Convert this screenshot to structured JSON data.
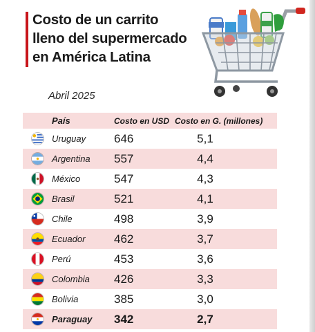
{
  "header": {
    "title_lines": [
      "Costo de un carrito",
      "lleno del supermercado",
      "en América Latina"
    ],
    "date": "Abril 2025"
  },
  "table": {
    "columns": [
      "País",
      "Costo en USD",
      "Costo en G. (millones)"
    ],
    "rows": [
      {
        "country": "Uruguay",
        "usd": "646",
        "g": "5,1",
        "flag_icon": "uruguay-flag-icon",
        "highlight": false
      },
      {
        "country": "Argentina",
        "usd": "557",
        "g": "4,4",
        "flag_icon": "argentina-flag-icon",
        "highlight": false
      },
      {
        "country": "México",
        "usd": "547",
        "g": "4,3",
        "flag_icon": "mexico-flag-icon",
        "highlight": false
      },
      {
        "country": "Brasil",
        "usd": "521",
        "g": "4,1",
        "flag_icon": "brazil-flag-icon",
        "highlight": false
      },
      {
        "country": "Chile",
        "usd": "498",
        "g": "3,9",
        "flag_icon": "chile-flag-icon",
        "highlight": false
      },
      {
        "country": "Ecuador",
        "usd": "462",
        "g": "3,7",
        "flag_icon": "ecuador-flag-icon",
        "highlight": false
      },
      {
        "country": "Perú",
        "usd": "453",
        "g": "3,6",
        "flag_icon": "peru-flag-icon",
        "highlight": false
      },
      {
        "country": "Colombia",
        "usd": "426",
        "g": "3,3",
        "flag_icon": "colombia-flag-icon",
        "highlight": false
      },
      {
        "country": "Bolivia",
        "usd": "385",
        "g": "3,0",
        "flag_icon": "bolivia-flag-icon",
        "highlight": false
      },
      {
        "country": "Paraguay",
        "usd": "342",
        "g": "2,7",
        "flag_icon": "paraguay-flag-icon",
        "highlight": true
      }
    ]
  },
  "illustration": {
    "icon": "shopping-cart-icon"
  },
  "colors": {
    "accent": "#c8151b",
    "row_shade": "#f8dcdc",
    "text": "#1a1a1a"
  }
}
